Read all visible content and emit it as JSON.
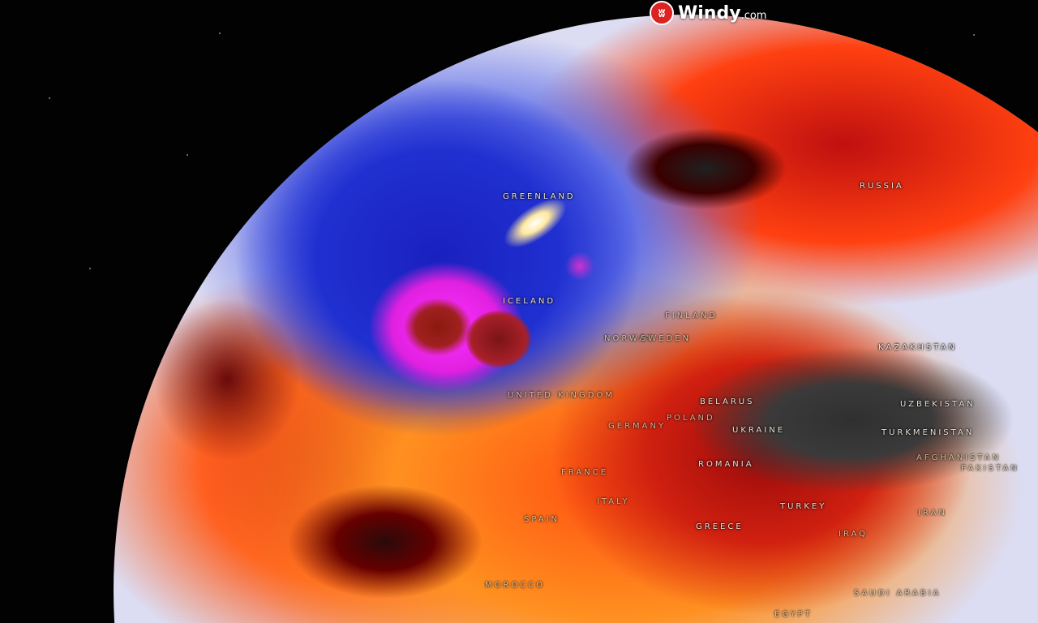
{
  "brand": {
    "name": "Windy",
    "suffix": ".com",
    "icon": "windy-logo-icon",
    "color": "#d22222"
  },
  "map": {
    "labels": {
      "greenland": "GREENLAND",
      "russia": "RUSSIA",
      "iceland": "ICELAND",
      "finland": "FINLAND",
      "norway": "NORWAY",
      "sweden": "SWEDEN",
      "united_kingdom": "UNITED KINGDOM",
      "belarus": "BELARUS",
      "poland": "POLAND",
      "germany": "GERMANY",
      "ukraine": "UKRAINE",
      "kazakhstan": "KAZAKHSTAN",
      "uzbekistan": "UZBEKISTAN",
      "turkmenistan": "TURKMENISTAN",
      "afghanistan": "AFGHANISTAN",
      "pakistan": "PAKISTAN",
      "france": "FRANCE",
      "romania": "ROMANIA",
      "italy": "ITALY",
      "spain": "SPAIN",
      "greece": "GREECE",
      "turkey": "TURKEY",
      "iran": "IRAN",
      "iraq": "IRAQ",
      "morocco": "MOROCCO",
      "saudi_arabia": "SAUDI ARABIA",
      "egypt": "EGYPT"
    }
  }
}
